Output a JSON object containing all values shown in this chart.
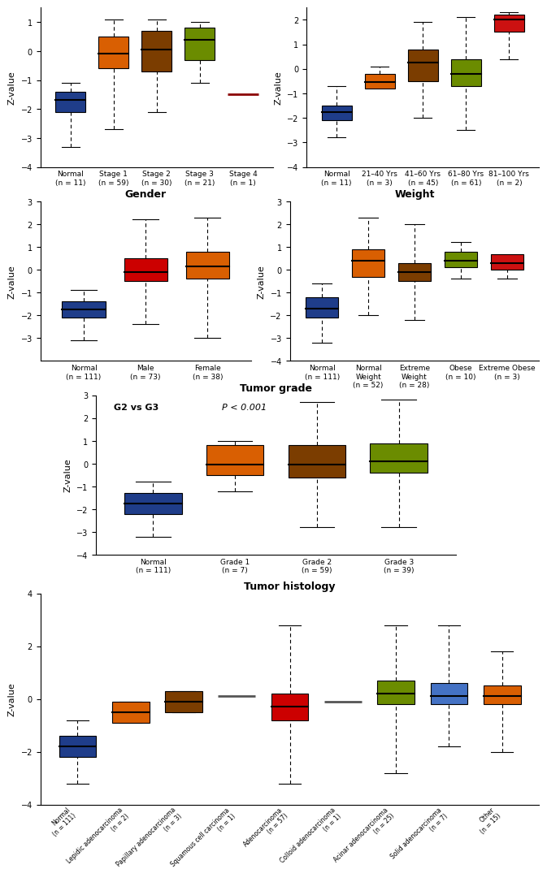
{
  "panel1": {
    "title": "",
    "ylabel": "Z-value",
    "ylim": [
      -4,
      1.5
    ],
    "yticks": [
      -4,
      -3,
      -2,
      -1,
      0,
      1
    ],
    "categories": [
      "Normal\n(n = 11)",
      "Stage 1\n(n = 59)",
      "Stage 2\n(n = 30)",
      "Stage 3\n(n = 21)",
      "Stage 4\n(n = 1)"
    ],
    "colors": [
      "#1f3d8a",
      "#d95f02",
      "#7b3d00",
      "#6b8c00",
      "#8b0000"
    ],
    "boxes": [
      {
        "q1": -2.1,
        "median": -1.7,
        "q3": -1.4,
        "whislo": -3.3,
        "whishi": -1.1
      },
      {
        "q1": -0.6,
        "median": -0.1,
        "q3": 0.5,
        "whislo": -2.7,
        "whishi": 1.1
      },
      {
        "q1": -0.7,
        "median": 0.05,
        "q3": 0.7,
        "whislo": -2.1,
        "whishi": 1.1
      },
      {
        "q1": -0.3,
        "median": 0.4,
        "q3": 0.8,
        "whislo": -1.1,
        "whishi": 1.0
      },
      {
        "q1": -1.5,
        "median": -1.5,
        "q3": -1.5,
        "whislo": -1.5,
        "whishi": -1.5
      }
    ]
  },
  "panel2": {
    "title": "",
    "ylabel": "Z-value",
    "ylim": [
      -4,
      2.5
    ],
    "yticks": [
      -4,
      -3,
      -2,
      -1,
      0,
      1,
      2
    ],
    "categories": [
      "Normal\n(n = 11)",
      "21–40 Yrs\n(n = 3)",
      "41–60 Yrs\n(n = 45)",
      "61–80 Yrs\n(n = 61)",
      "81–100 Yrs\n(n = 2)"
    ],
    "colors": [
      "#1f3d8a",
      "#d95f02",
      "#7b3d00",
      "#6b8c00",
      "#cc1111"
    ],
    "boxes": [
      {
        "q1": -2.1,
        "median": -1.75,
        "q3": -1.5,
        "whislo": -2.8,
        "whishi": -0.7
      },
      {
        "q1": -0.8,
        "median": -0.55,
        "q3": -0.2,
        "whislo": -0.6,
        "whishi": 0.1
      },
      {
        "q1": -0.5,
        "median": 0.25,
        "q3": 0.8,
        "whislo": -2.0,
        "whishi": 1.9
      },
      {
        "q1": -0.7,
        "median": -0.2,
        "q3": 0.4,
        "whislo": -2.5,
        "whishi": 2.1
      },
      {
        "q1": 1.5,
        "median": 2.0,
        "q3": 2.2,
        "whislo": 0.4,
        "whishi": 2.3
      }
    ]
  },
  "panel3": {
    "title": "Gender",
    "ylabel": "Z-value",
    "ylim": [
      -4,
      3
    ],
    "yticks": [
      -3,
      -2,
      -1,
      0,
      1,
      2,
      3
    ],
    "categories": [
      "Normal\n(n = 111)",
      "Male\n(n = 73)",
      "Female\n(n = 38)"
    ],
    "colors": [
      "#1f3d8a",
      "#cc0000",
      "#d95f02"
    ],
    "boxes": [
      {
        "q1": -2.1,
        "median": -1.75,
        "q3": -1.4,
        "whislo": -3.1,
        "whishi": -0.9
      },
      {
        "q1": -0.5,
        "median": -0.1,
        "q3": 0.5,
        "whislo": -2.4,
        "whishi": 2.2
      },
      {
        "q1": -0.4,
        "median": 0.15,
        "q3": 0.8,
        "whislo": -3.0,
        "whishi": 2.3
      }
    ]
  },
  "panel4": {
    "title": "Weight",
    "ylabel": "Z-value",
    "ylim": [
      -4,
      3
    ],
    "yticks": [
      -4,
      -3,
      -2,
      -1,
      0,
      1,
      2,
      3
    ],
    "categories": [
      "Normal\n(n = 111)",
      "Normal\nWeight\n(n = 52)",
      "Extreme\nWeight\n(n = 28)",
      "Obese\n(n = 10)",
      "Extreme Obese\n(n = 3)"
    ],
    "colors": [
      "#1f3d8a",
      "#d95f02",
      "#7b3d00",
      "#6b8c00",
      "#cc1111"
    ],
    "boxes": [
      {
        "q1": -2.1,
        "median": -1.7,
        "q3": -1.2,
        "whislo": -3.2,
        "whishi": -0.6
      },
      {
        "q1": -0.3,
        "median": 0.4,
        "q3": 0.9,
        "whislo": -2.0,
        "whishi": 2.3
      },
      {
        "q1": -0.5,
        "median": -0.1,
        "q3": 0.3,
        "whislo": -2.2,
        "whishi": 2.0
      },
      {
        "q1": 0.1,
        "median": 0.4,
        "q3": 0.8,
        "whislo": -0.4,
        "whishi": 1.2
      },
      {
        "q1": 0.0,
        "median": 0.3,
        "q3": 0.7,
        "whislo": -0.4,
        "whishi": 0.6
      }
    ]
  },
  "panel5": {
    "title": "Tumor grade",
    "ylabel": "Z-value",
    "ylim": [
      -4,
      3
    ],
    "yticks": [
      -4,
      -3,
      -2,
      -1,
      0,
      1,
      2,
      3
    ],
    "annotation": "G2 vs G3   P < 0.001",
    "categories": [
      "Normal\n(n = 111)",
      "Grade 1\n(n = 7)",
      "Grade 2\n(n = 59)",
      "Grade 3\n(n = 39)"
    ],
    "colors": [
      "#1f3d8a",
      "#d95f02",
      "#7b3d00",
      "#6b8c00"
    ],
    "boxes": [
      {
        "q1": -2.2,
        "median": -1.75,
        "q3": -1.3,
        "whislo": -3.2,
        "whishi": -0.8
      },
      {
        "q1": -0.5,
        "median": -0.05,
        "q3": 0.8,
        "whislo": -1.2,
        "whishi": 1.0
      },
      {
        "q1": -0.6,
        "median": -0.05,
        "q3": 0.8,
        "whislo": -2.8,
        "whishi": 2.7
      },
      {
        "q1": -0.4,
        "median": 0.1,
        "q3": 0.9,
        "whislo": -2.8,
        "whishi": 2.8
      }
    ]
  },
  "panel6": {
    "title": "Tumor histology",
    "ylabel": "Z-value",
    "ylim": [
      -4,
      4
    ],
    "yticks": [
      -4,
      -2,
      0,
      2,
      4
    ],
    "categories": [
      "Normal\n(n = 111)",
      "Lepidic adenocarcinoma\n(n = 2)",
      "Papillary adenocarcinoma\n(n = 3)",
      "Squamous cell carcinoma\n(n = 1)",
      "Adenocarcinoma\n(n = 57)",
      "Colloid adenocarcinoma\n(n = 1)",
      "Acinar adenocarcinoma\n(n = 25)",
      "Solid adenocarcinoma\n(n = 7)",
      "Other\n(n = 15)"
    ],
    "colors": [
      "#1f3d8a",
      "#d95f02",
      "#7b3d00",
      "#555555",
      "#cc0000",
      "#555555",
      "#6b8c00",
      "#4472c4",
      "#d95f02"
    ],
    "boxes": [
      {
        "q1": -2.2,
        "median": -1.8,
        "q3": -1.4,
        "whislo": -3.2,
        "whishi": -0.8
      },
      {
        "q1": -0.9,
        "median": -0.5,
        "q3": -0.1,
        "whislo": -0.9,
        "whishi": -0.1
      },
      {
        "q1": -0.5,
        "median": -0.1,
        "q3": 0.3,
        "whislo": -0.5,
        "whishi": 0.3
      },
      {
        "q1": 0.1,
        "median": 0.1,
        "q3": 0.1,
        "whislo": 0.1,
        "whishi": 0.1
      },
      {
        "q1": -0.8,
        "median": -0.3,
        "q3": 0.2,
        "whislo": -3.2,
        "whishi": 2.8
      },
      {
        "q1": -0.1,
        "median": -0.1,
        "q3": -0.1,
        "whislo": -0.1,
        "whishi": -0.1
      },
      {
        "q1": -0.2,
        "median": 0.2,
        "q3": 0.7,
        "whislo": -2.8,
        "whishi": 2.8
      },
      {
        "q1": -0.2,
        "median": 0.1,
        "q3": 0.6,
        "whislo": -1.8,
        "whishi": 2.8
      },
      {
        "q1": -0.2,
        "median": 0.1,
        "q3": 0.5,
        "whislo": -2.0,
        "whishi": 1.8
      }
    ]
  }
}
